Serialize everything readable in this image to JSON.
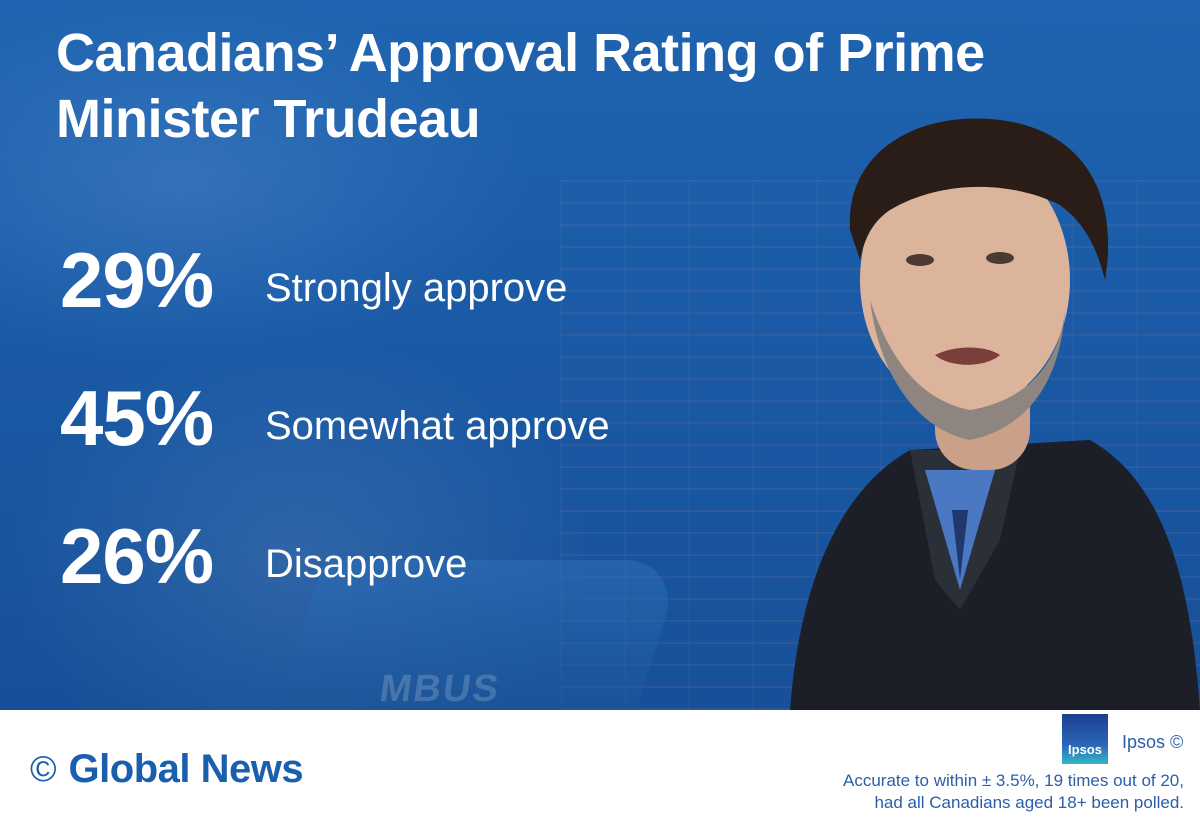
{
  "title": "Canadians’ Approval Rating of Prime Minister Trudeau",
  "stats": [
    {
      "percent": "29%",
      "label": "Strongly approve"
    },
    {
      "percent": "45%",
      "label": "Somewhat approve"
    },
    {
      "percent": "26%",
      "label": "Disapprove"
    }
  ],
  "footer": {
    "copyright_symbol": "©",
    "brand": "Global News",
    "ipsos_logo_text": "Ipsos",
    "ipsos_credit": "Ipsos ©",
    "disclaimer_line1": "Accurate to within ± 3.5%, 19 times out of 20,",
    "disclaimer_line2": "had all Canadians aged 18+ been polled."
  },
  "background": {
    "podium_text": "MBUS"
  },
  "colors": {
    "primary_blue": "#1a5aa6",
    "brand_blue": "#1a5fae",
    "text_white": "#ffffff"
  },
  "icons": {
    "person": "person-photo",
    "ipsos": "ipsos-logo"
  }
}
